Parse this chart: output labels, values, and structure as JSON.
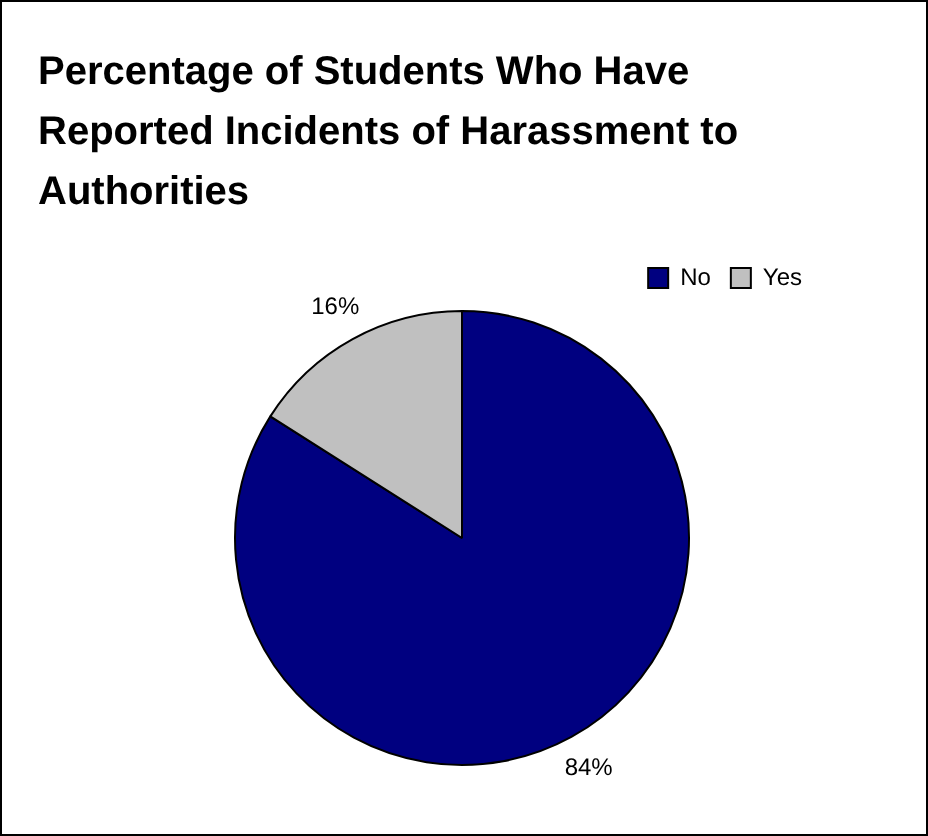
{
  "chart_data": {
    "type": "pie",
    "title": "Percentage of Students Who Have Reported Incidents of Harassment to Authorities",
    "categories": [
      "No",
      "Yes"
    ],
    "values": [
      84,
      16
    ],
    "colors": [
      "#000080",
      "#c0c0c0"
    ],
    "value_labels": [
      "84%",
      "16%"
    ],
    "legend": "top right"
  }
}
